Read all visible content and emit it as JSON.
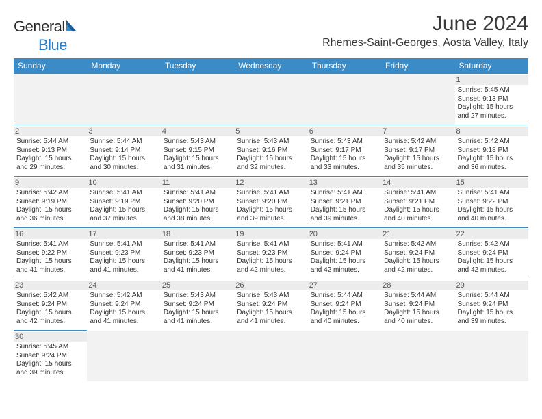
{
  "brand": {
    "general": "General",
    "blue": "Blue"
  },
  "title": "June 2024",
  "location": "Rhemes-Saint-Georges, Aosta Valley, Italy",
  "colors": {
    "header_bg": "#3b8bc6",
    "header_text": "#ffffff",
    "daynum_bg": "#ececec",
    "border": "#3b8bc6",
    "background": "#ffffff",
    "text": "#333333",
    "logo_blue": "#2e7cc0"
  },
  "days_of_week": [
    "Sunday",
    "Monday",
    "Tuesday",
    "Wednesday",
    "Thursday",
    "Friday",
    "Saturday"
  ],
  "weeks": [
    [
      null,
      null,
      null,
      null,
      null,
      null,
      {
        "n": "1",
        "sunrise": "Sunrise: 5:45 AM",
        "sunset": "Sunset: 9:13 PM",
        "daylight": "Daylight: 15 hours and 27 minutes."
      }
    ],
    [
      {
        "n": "2",
        "sunrise": "Sunrise: 5:44 AM",
        "sunset": "Sunset: 9:13 PM",
        "daylight": "Daylight: 15 hours and 29 minutes."
      },
      {
        "n": "3",
        "sunrise": "Sunrise: 5:44 AM",
        "sunset": "Sunset: 9:14 PM",
        "daylight": "Daylight: 15 hours and 30 minutes."
      },
      {
        "n": "4",
        "sunrise": "Sunrise: 5:43 AM",
        "sunset": "Sunset: 9:15 PM",
        "daylight": "Daylight: 15 hours and 31 minutes."
      },
      {
        "n": "5",
        "sunrise": "Sunrise: 5:43 AM",
        "sunset": "Sunset: 9:16 PM",
        "daylight": "Daylight: 15 hours and 32 minutes."
      },
      {
        "n": "6",
        "sunrise": "Sunrise: 5:43 AM",
        "sunset": "Sunset: 9:17 PM",
        "daylight": "Daylight: 15 hours and 33 minutes."
      },
      {
        "n": "7",
        "sunrise": "Sunrise: 5:42 AM",
        "sunset": "Sunset: 9:17 PM",
        "daylight": "Daylight: 15 hours and 35 minutes."
      },
      {
        "n": "8",
        "sunrise": "Sunrise: 5:42 AM",
        "sunset": "Sunset: 9:18 PM",
        "daylight": "Daylight: 15 hours and 36 minutes."
      }
    ],
    [
      {
        "n": "9",
        "sunrise": "Sunrise: 5:42 AM",
        "sunset": "Sunset: 9:19 PM",
        "daylight": "Daylight: 15 hours and 36 minutes."
      },
      {
        "n": "10",
        "sunrise": "Sunrise: 5:41 AM",
        "sunset": "Sunset: 9:19 PM",
        "daylight": "Daylight: 15 hours and 37 minutes."
      },
      {
        "n": "11",
        "sunrise": "Sunrise: 5:41 AM",
        "sunset": "Sunset: 9:20 PM",
        "daylight": "Daylight: 15 hours and 38 minutes."
      },
      {
        "n": "12",
        "sunrise": "Sunrise: 5:41 AM",
        "sunset": "Sunset: 9:20 PM",
        "daylight": "Daylight: 15 hours and 39 minutes."
      },
      {
        "n": "13",
        "sunrise": "Sunrise: 5:41 AM",
        "sunset": "Sunset: 9:21 PM",
        "daylight": "Daylight: 15 hours and 39 minutes."
      },
      {
        "n": "14",
        "sunrise": "Sunrise: 5:41 AM",
        "sunset": "Sunset: 9:21 PM",
        "daylight": "Daylight: 15 hours and 40 minutes."
      },
      {
        "n": "15",
        "sunrise": "Sunrise: 5:41 AM",
        "sunset": "Sunset: 9:22 PM",
        "daylight": "Daylight: 15 hours and 40 minutes."
      }
    ],
    [
      {
        "n": "16",
        "sunrise": "Sunrise: 5:41 AM",
        "sunset": "Sunset: 9:22 PM",
        "daylight": "Daylight: 15 hours and 41 minutes."
      },
      {
        "n": "17",
        "sunrise": "Sunrise: 5:41 AM",
        "sunset": "Sunset: 9:23 PM",
        "daylight": "Daylight: 15 hours and 41 minutes."
      },
      {
        "n": "18",
        "sunrise": "Sunrise: 5:41 AM",
        "sunset": "Sunset: 9:23 PM",
        "daylight": "Daylight: 15 hours and 41 minutes."
      },
      {
        "n": "19",
        "sunrise": "Sunrise: 5:41 AM",
        "sunset": "Sunset: 9:23 PM",
        "daylight": "Daylight: 15 hours and 42 minutes."
      },
      {
        "n": "20",
        "sunrise": "Sunrise: 5:41 AM",
        "sunset": "Sunset: 9:24 PM",
        "daylight": "Daylight: 15 hours and 42 minutes."
      },
      {
        "n": "21",
        "sunrise": "Sunrise: 5:42 AM",
        "sunset": "Sunset: 9:24 PM",
        "daylight": "Daylight: 15 hours and 42 minutes."
      },
      {
        "n": "22",
        "sunrise": "Sunrise: 5:42 AM",
        "sunset": "Sunset: 9:24 PM",
        "daylight": "Daylight: 15 hours and 42 minutes."
      }
    ],
    [
      {
        "n": "23",
        "sunrise": "Sunrise: 5:42 AM",
        "sunset": "Sunset: 9:24 PM",
        "daylight": "Daylight: 15 hours and 42 minutes."
      },
      {
        "n": "24",
        "sunrise": "Sunrise: 5:42 AM",
        "sunset": "Sunset: 9:24 PM",
        "daylight": "Daylight: 15 hours and 41 minutes."
      },
      {
        "n": "25",
        "sunrise": "Sunrise: 5:43 AM",
        "sunset": "Sunset: 9:24 PM",
        "daylight": "Daylight: 15 hours and 41 minutes."
      },
      {
        "n": "26",
        "sunrise": "Sunrise: 5:43 AM",
        "sunset": "Sunset: 9:24 PM",
        "daylight": "Daylight: 15 hours and 41 minutes."
      },
      {
        "n": "27",
        "sunrise": "Sunrise: 5:44 AM",
        "sunset": "Sunset: 9:24 PM",
        "daylight": "Daylight: 15 hours and 40 minutes."
      },
      {
        "n": "28",
        "sunrise": "Sunrise: 5:44 AM",
        "sunset": "Sunset: 9:24 PM",
        "daylight": "Daylight: 15 hours and 40 minutes."
      },
      {
        "n": "29",
        "sunrise": "Sunrise: 5:44 AM",
        "sunset": "Sunset: 9:24 PM",
        "daylight": "Daylight: 15 hours and 39 minutes."
      }
    ],
    [
      {
        "n": "30",
        "sunrise": "Sunrise: 5:45 AM",
        "sunset": "Sunset: 9:24 PM",
        "daylight": "Daylight: 15 hours and 39 minutes."
      },
      null,
      null,
      null,
      null,
      null,
      null
    ]
  ]
}
